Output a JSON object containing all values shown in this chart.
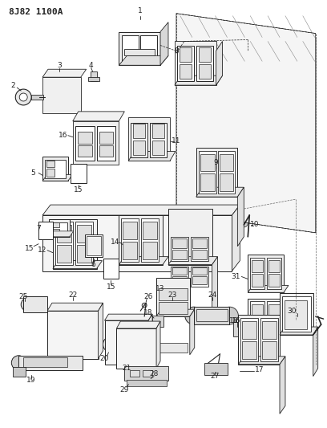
{
  "title": "8J82 1100A",
  "bg_color": "#ffffff",
  "fig_width": 4.08,
  "fig_height": 5.33,
  "dpi": 100,
  "line_color": "#222222",
  "label_fontsize": 6.5
}
